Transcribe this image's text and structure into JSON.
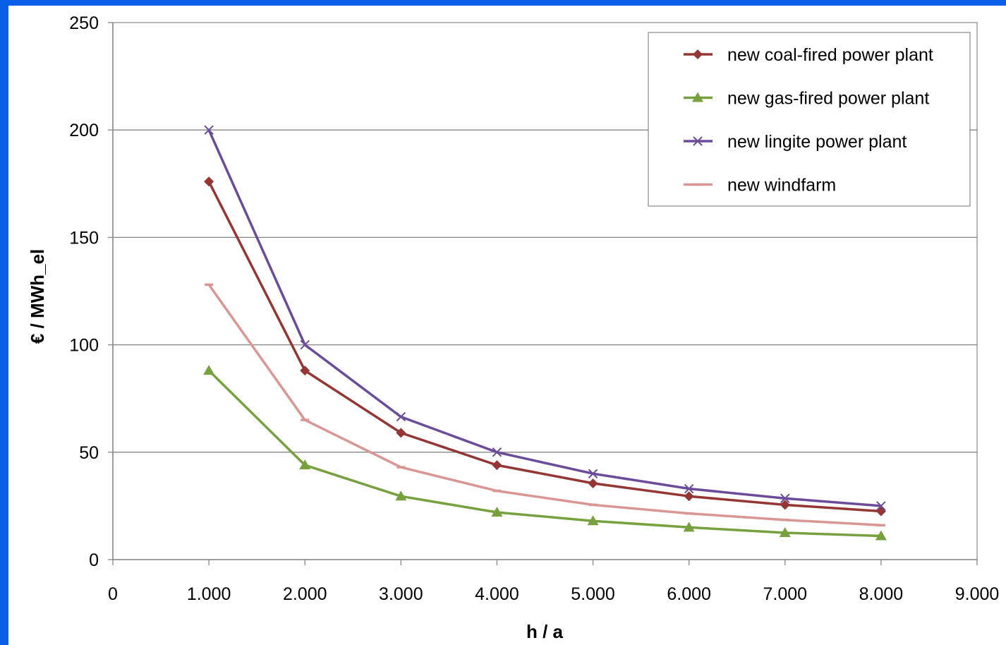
{
  "chart_data": {
    "type": "line",
    "title": "",
    "xlabel": "h / a",
    "ylabel": "€ / MWh_el",
    "xlim": [
      0,
      9000
    ],
    "ylim": [
      0,
      250
    ],
    "grid": true,
    "legend_position": "top-right",
    "x_ticks": [
      0,
      1000,
      2000,
      3000,
      4000,
      5000,
      6000,
      7000,
      8000,
      9000
    ],
    "x_tick_labels": [
      "0",
      "1.000",
      "2.000",
      "3.000",
      "4.000",
      "5.000",
      "6.000",
      "7.000",
      "8.000",
      "9.000"
    ],
    "y_ticks": [
      0,
      50,
      100,
      150,
      200,
      250
    ],
    "y_tick_labels": [
      "0",
      "50",
      "100",
      "150",
      "200",
      "250"
    ],
    "x": [
      1000,
      2000,
      3000,
      4000,
      5000,
      6000,
      7000,
      8000
    ],
    "series": [
      {
        "name": "new coal-fired power plant",
        "color": "#943634",
        "marker": "diamond",
        "values": [
          176,
          88,
          59,
          44,
          35.5,
          29.5,
          25.5,
          22.5
        ]
      },
      {
        "name": "new gas-fired power plant",
        "color": "#77a13e",
        "marker": "triangle",
        "values": [
          88,
          44,
          29.5,
          22,
          18,
          15,
          12.5,
          11
        ]
      },
      {
        "name": "new lingite power plant",
        "color": "#6b4c9a",
        "marker": "x",
        "values": [
          200,
          100,
          66.5,
          50,
          40,
          33,
          28.5,
          25
        ]
      },
      {
        "name": "new windfarm",
        "color": "#d99694",
        "marker": "dash",
        "values": [
          128,
          65,
          43,
          32,
          25.5,
          21.5,
          18.5,
          16
        ]
      }
    ]
  }
}
